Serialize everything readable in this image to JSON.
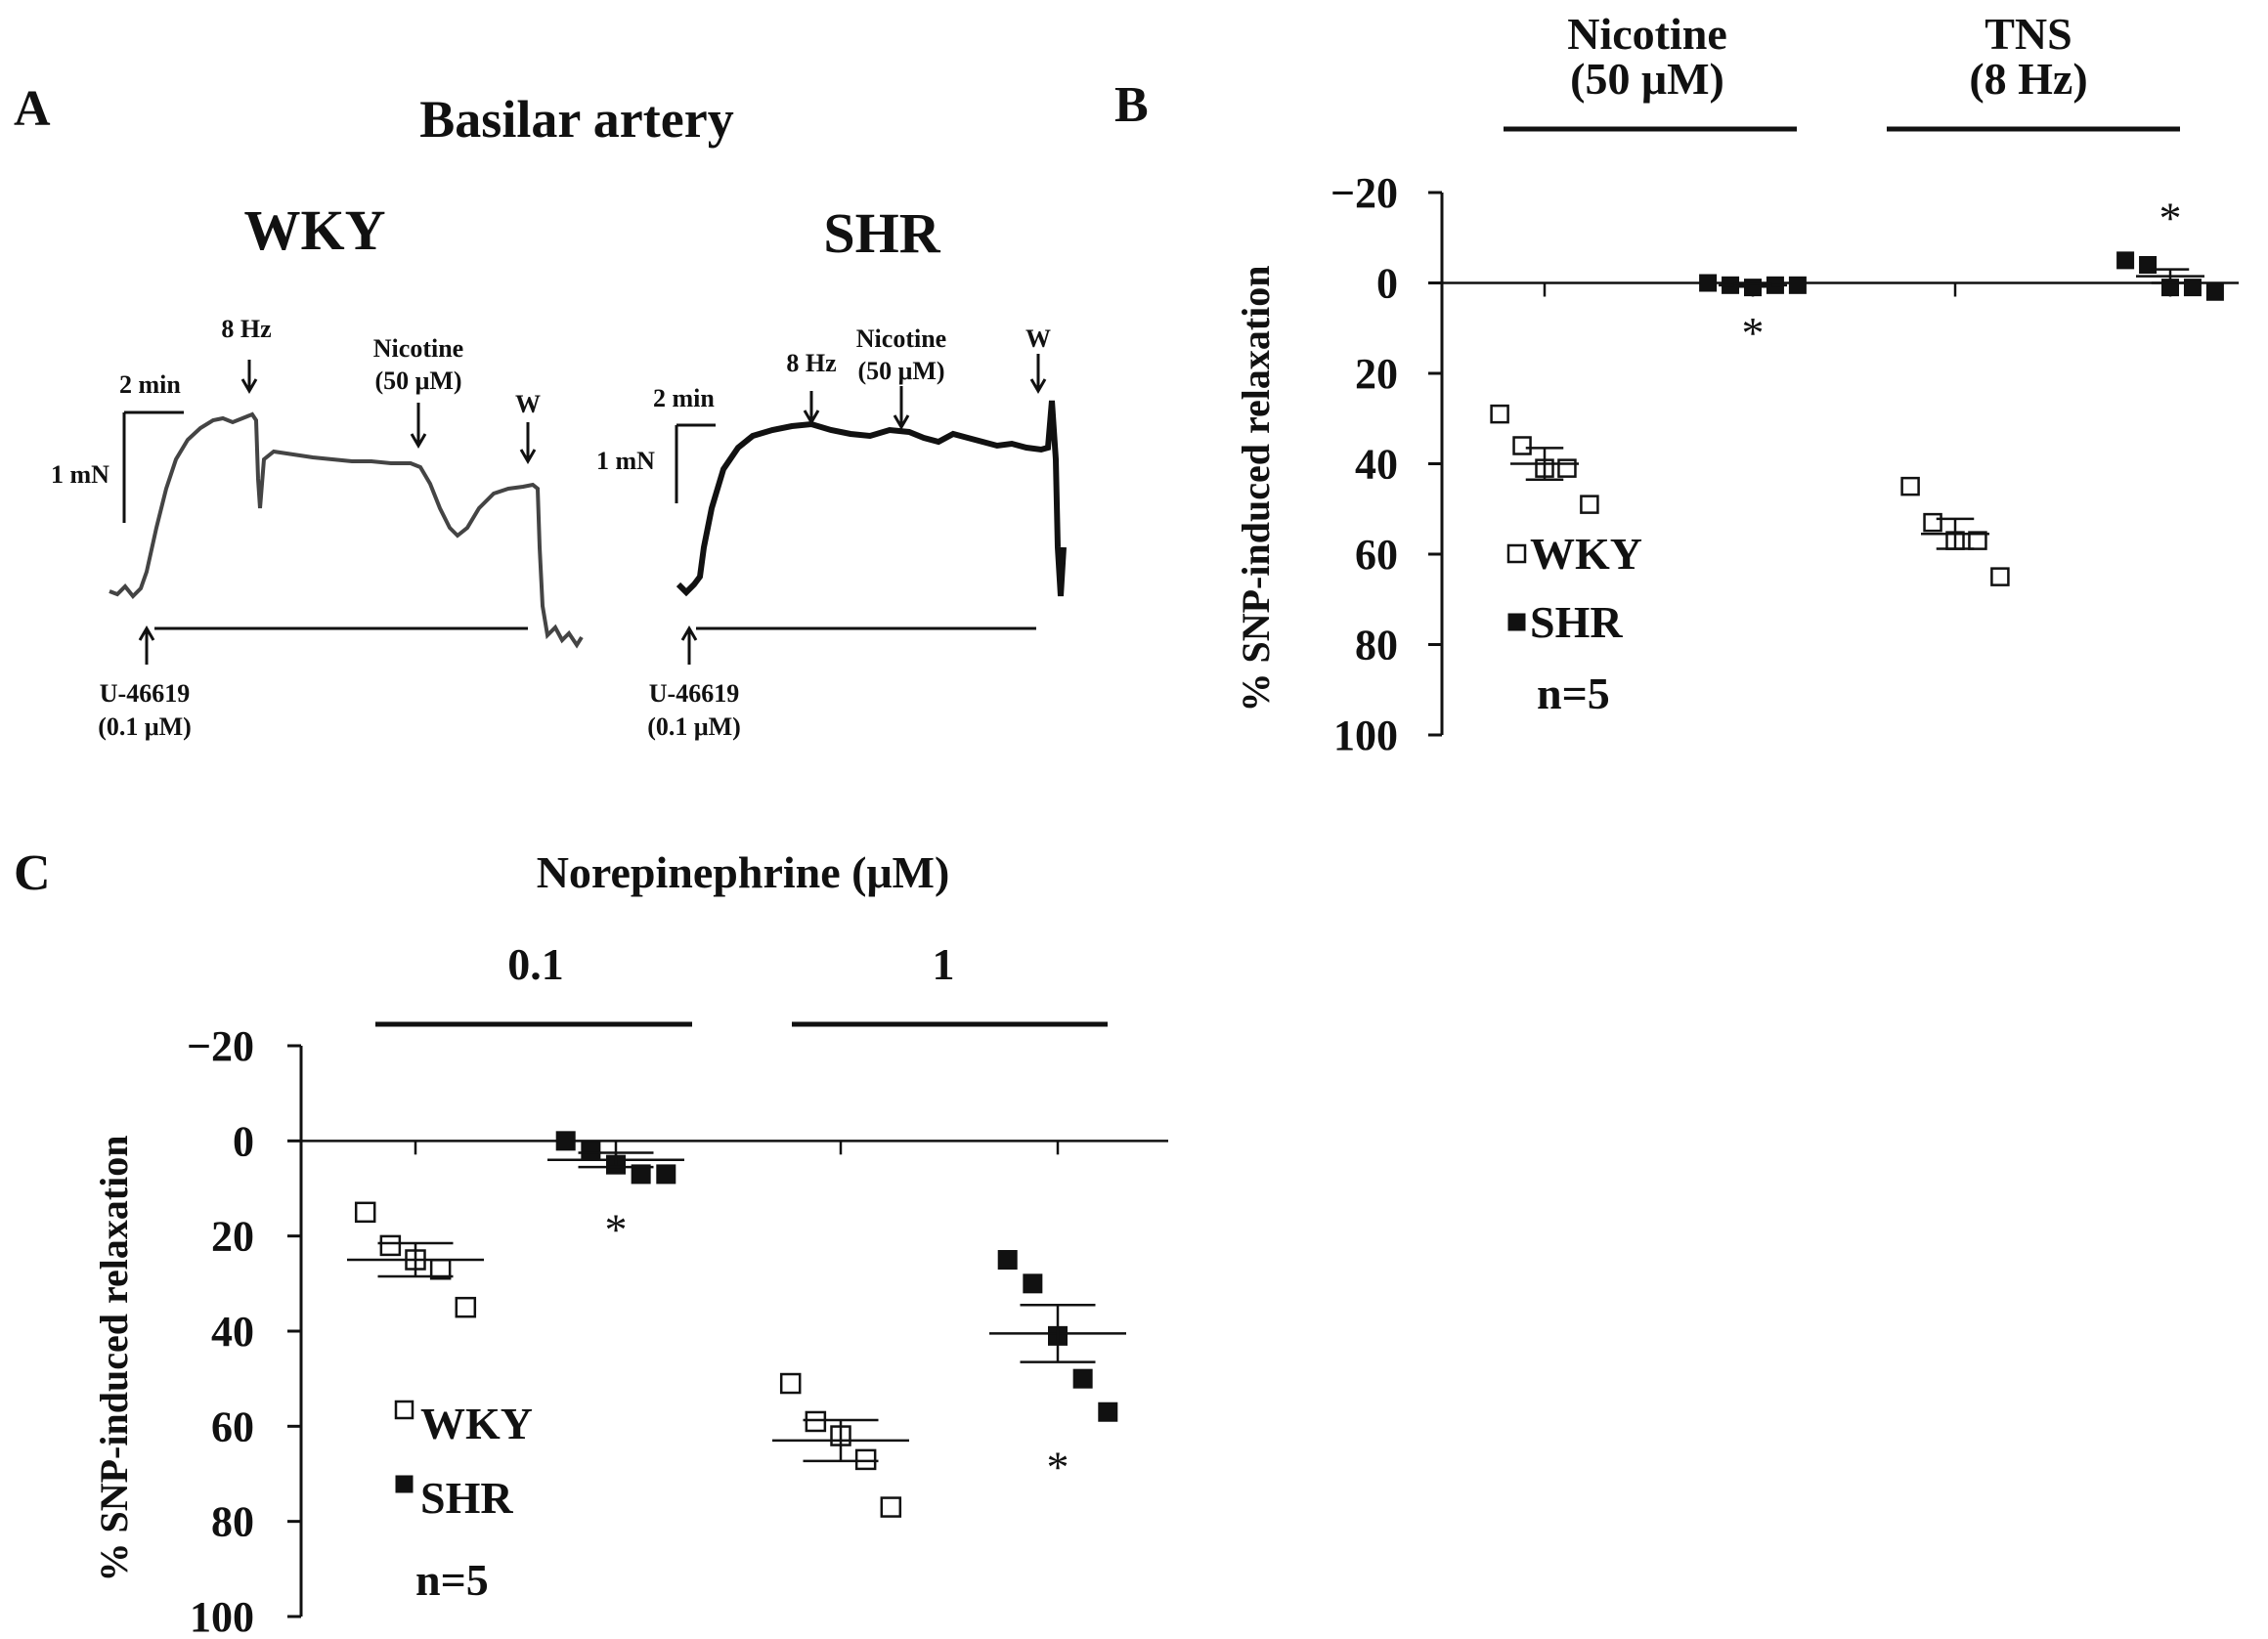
{
  "panels": {
    "a": "A",
    "b": "B",
    "c": "C"
  },
  "panel_a": {
    "title": "Basilar artery",
    "wky": {
      "label": "WKY",
      "time_scale": "2 min",
      "force_scale": "1 mN",
      "event_8hz": "8 Hz",
      "event_nicotine": "Nicotine",
      "event_nicotine_conc": "(50 μM)",
      "event_washout": "W",
      "agent": "U-46619",
      "agent_conc": "(0.1 μM)"
    },
    "shr": {
      "label": "SHR",
      "time_scale": "2 min",
      "force_scale": "1 mN",
      "event_8hz": "8 Hz",
      "event_nicotine": "Nicotine",
      "event_nicotine_conc": "(50 μM)",
      "event_washout": "W",
      "agent": "U-46619",
      "agent_conc": "(0.1 μM)"
    }
  },
  "chart_data": [
    {
      "panel": "B",
      "type": "scatter",
      "ylabel": "% SNP-induced relaxation",
      "ylim": [
        -20,
        100
      ],
      "yticks": [
        "−20",
        "0",
        "20",
        "40",
        "60",
        "80",
        "100"
      ],
      "y_inverted": true,
      "groups": [
        {
          "label_line1": "Nicotine",
          "label_line2": "(50 μM)"
        },
        {
          "label_line1": "TNS",
          "label_line2": "(8 Hz)"
        }
      ],
      "series": [
        {
          "name": "WKY",
          "marker": "open-square",
          "group": 0,
          "values": [
            29,
            36,
            41,
            41,
            49
          ],
          "mean": 40,
          "sem": 3.5
        },
        {
          "name": "SHR",
          "marker": "filled-square",
          "group": 0,
          "values": [
            0,
            0.5,
            1,
            0.5,
            0.5
          ],
          "mean": 0.5,
          "sem": 0.3,
          "significance": "*"
        },
        {
          "name": "WKY",
          "marker": "open-square",
          "group": 1,
          "values": [
            45,
            53,
            57,
            57,
            65
          ],
          "mean": 55.5,
          "sem": 3.3
        },
        {
          "name": "SHR",
          "marker": "filled-square",
          "group": 1,
          "values": [
            -5,
            -4,
            1,
            1,
            2
          ],
          "mean": -1.5,
          "sem": 1.5,
          "significance": "*"
        }
      ],
      "legend": [
        "WKY",
        "SHR"
      ],
      "legend_position": "left-lower",
      "n_label": "n=5"
    },
    {
      "panel": "C",
      "type": "scatter",
      "title": "Norepinephrine (μM)",
      "ylabel": "% SNP-induced relaxation",
      "ylim": [
        -20,
        100
      ],
      "yticks": [
        "−20",
        "0",
        "20",
        "40",
        "60",
        "80",
        "100"
      ],
      "y_inverted": true,
      "groups": [
        {
          "label_line1": "0.1",
          "label_line2": ""
        },
        {
          "label_line1": "1",
          "label_line2": ""
        }
      ],
      "series": [
        {
          "name": "WKY",
          "marker": "open-square",
          "group": 0,
          "values": [
            15,
            22,
            25,
            27,
            35
          ],
          "mean": 25,
          "sem": 3.5
        },
        {
          "name": "SHR",
          "marker": "filled-square",
          "group": 0,
          "values": [
            0,
            2,
            5,
            7,
            7
          ],
          "mean": 4,
          "sem": 1.5,
          "significance": "*"
        },
        {
          "name": "WKY",
          "marker": "open-square",
          "group": 1,
          "values": [
            51,
            59,
            62,
            67,
            77
          ],
          "mean": 63,
          "sem": 4.3
        },
        {
          "name": "SHR",
          "marker": "filled-square",
          "group": 1,
          "values": [
            25,
            30,
            41,
            50,
            57
          ],
          "mean": 40.5,
          "sem": 6,
          "significance": "*"
        }
      ],
      "legend": [
        "WKY",
        "SHR"
      ],
      "legend_position": "left-lower",
      "n_label": "n=5"
    }
  ]
}
